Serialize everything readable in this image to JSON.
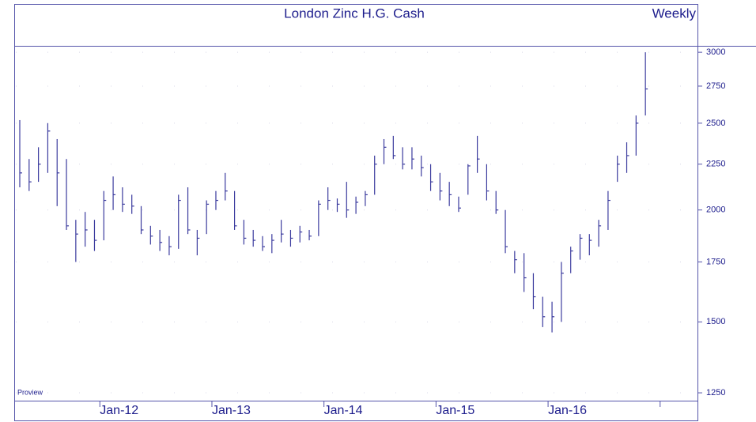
{
  "chart_data": {
    "type": "ohlc",
    "title": "London Zinc  H.G. Cash",
    "subtitle": "Weekly",
    "watermark": "Proview",
    "color": "#3b3b9e",
    "text_color": "#1c1c8c",
    "log_scale": true,
    "grid": true,
    "x": [
      "2011-04",
      "2011-05",
      "2011-06",
      "2011-07",
      "2011-08",
      "2011-09",
      "2011-10",
      "2011-11",
      "2011-12",
      "2012-01",
      "2012-02",
      "2012-03",
      "2012-04",
      "2012-05",
      "2012-06",
      "2012-07",
      "2012-08",
      "2012-09",
      "2012-10",
      "2012-11",
      "2012-12",
      "2013-01",
      "2013-02",
      "2013-03",
      "2013-04",
      "2013-05",
      "2013-06",
      "2013-07",
      "2013-08",
      "2013-09",
      "2013-10",
      "2013-11",
      "2013-12",
      "2014-01",
      "2014-02",
      "2014-03",
      "2014-04",
      "2014-05",
      "2014-06",
      "2014-07",
      "2014-08",
      "2014-09",
      "2014-10",
      "2014-11",
      "2014-12",
      "2015-01",
      "2015-02",
      "2015-03",
      "2015-04",
      "2015-05",
      "2015-06",
      "2015-07",
      "2015-08",
      "2015-09",
      "2015-10",
      "2015-11",
      "2015-12",
      "2016-01",
      "2016-02",
      "2016-03",
      "2016-04",
      "2016-05",
      "2016-06",
      "2016-07",
      "2016-08",
      "2016-09",
      "2016-10",
      "2016-11"
    ],
    "high": [
      2520,
      2280,
      2350,
      2500,
      2400,
      2280,
      1950,
      1990,
      1950,
      2100,
      2180,
      2120,
      2080,
      2020,
      1920,
      1900,
      1870,
      2080,
      2120,
      1900,
      2050,
      2100,
      2200,
      2100,
      1950,
      1900,
      1870,
      1880,
      1950,
      1900,
      1920,
      1900,
      2050,
      2120,
      2060,
      2150,
      2070,
      2100,
      2300,
      2400,
      2420,
      2350,
      2350,
      2300,
      2250,
      2200,
      2150,
      2070,
      2250,
      2420,
      2250,
      2100,
      2000,
      1800,
      1790,
      1700,
      1600,
      1580,
      1750,
      1820,
      1880,
      1880,
      1950,
      2100,
      2300,
      2380,
      2550,
      3000
    ],
    "low": [
      2120,
      2100,
      2150,
      2200,
      2020,
      1900,
      1750,
      1820,
      1800,
      1850,
      2000,
      1990,
      1980,
      1880,
      1830,
      1800,
      1780,
      1810,
      1880,
      1780,
      1880,
      2000,
      2050,
      1900,
      1830,
      1820,
      1800,
      1790,
      1840,
      1820,
      1840,
      1850,
      1870,
      2000,
      1990,
      1960,
      1980,
      2020,
      2080,
      2250,
      2280,
      2220,
      2220,
      2180,
      2100,
      2050,
      2020,
      1990,
      2080,
      2200,
      2050,
      1980,
      1790,
      1700,
      1620,
      1550,
      1480,
      1460,
      1500,
      1700,
      1760,
      1780,
      1820,
      1900,
      2150,
      2200,
      2300,
      2550
    ],
    "close": [
      2200,
      2150,
      2250,
      2450,
      2200,
      1920,
      1880,
      1900,
      1850,
      2050,
      2080,
      2030,
      2020,
      1900,
      1870,
      1840,
      1820,
      2050,
      1900,
      1860,
      2030,
      2050,
      2100,
      1920,
      1860,
      1850,
      1820,
      1850,
      1880,
      1860,
      1890,
      1870,
      2030,
      2050,
      2030,
      2000,
      2040,
      2080,
      2250,
      2350,
      2300,
      2250,
      2280,
      2230,
      2150,
      2100,
      2080,
      2010,
      2240,
      2280,
      2100,
      2000,
      1820,
      1760,
      1680,
      1600,
      1520,
      1520,
      1700,
      1800,
      1860,
      1850,
      1920,
      2050,
      2250,
      2300,
      2500,
      2730
    ],
    "xlim": [
      "2011-04",
      "2017-05"
    ],
    "xticks": [
      {
        "value": "2012-01",
        "label": "Jan-12"
      },
      {
        "value": "2013-01",
        "label": "Jan-13"
      },
      {
        "value": "2014-01",
        "label": "Jan-14"
      },
      {
        "value": "2015-01",
        "label": "Jan-15"
      },
      {
        "value": "2016-01",
        "label": "Jan-16"
      },
      {
        "value": "2017-01",
        "label": null
      }
    ],
    "ylim": [
      1225,
      3050
    ],
    "yticks": [
      3000,
      2750,
      2500,
      2250,
      2000,
      1750,
      1500,
      1250
    ]
  }
}
